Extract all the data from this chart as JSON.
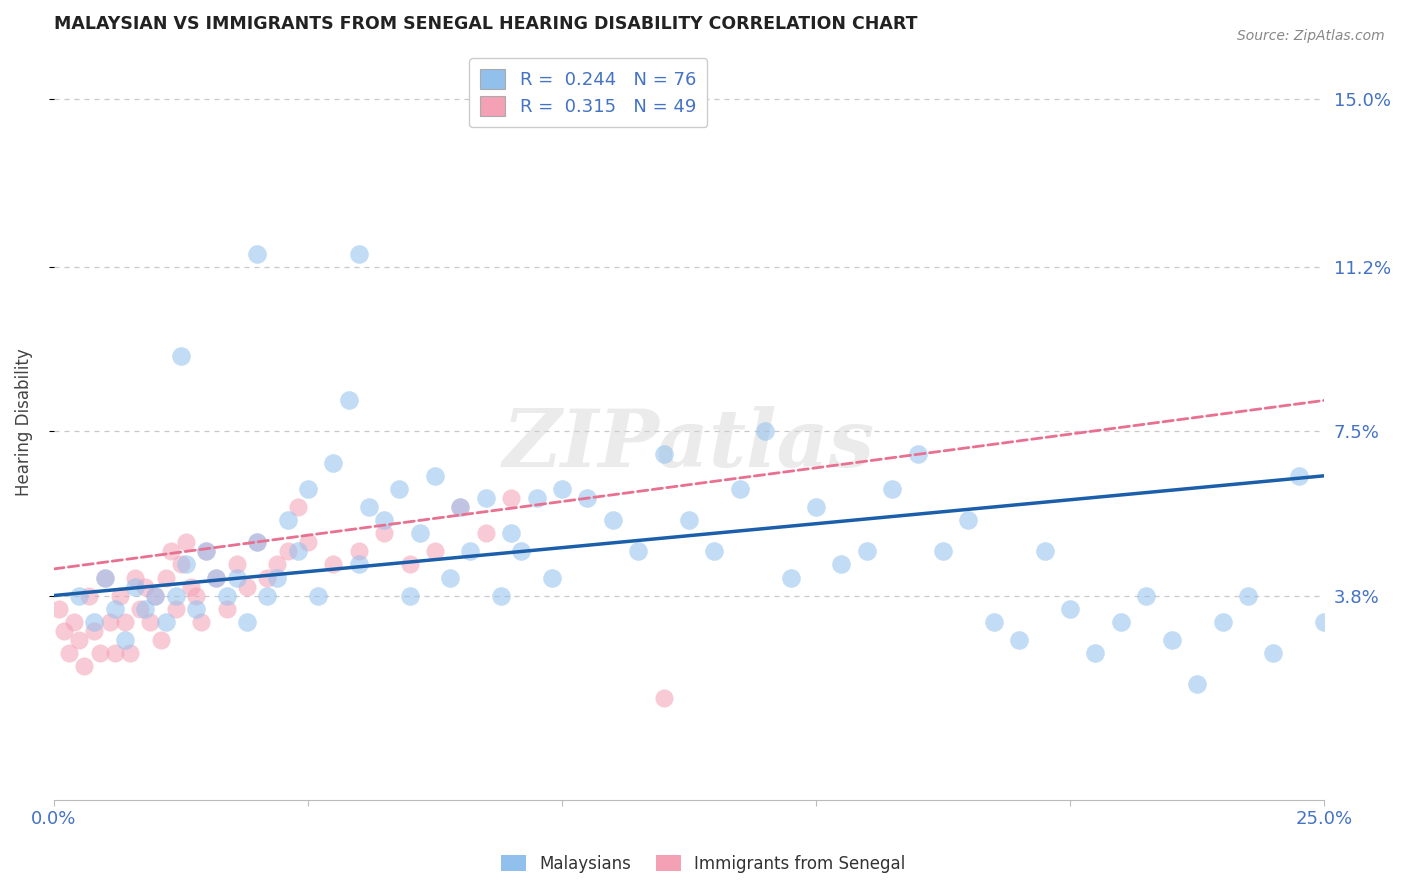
{
  "title": "MALAYSIAN VS IMMIGRANTS FROM SENEGAL HEARING DISABILITY CORRELATION CHART",
  "source": "Source: ZipAtlas.com",
  "ylabel": "Hearing Disability",
  "ytick_labels": [
    "3.8%",
    "7.5%",
    "11.2%",
    "15.0%"
  ],
  "ytick_values": [
    0.038,
    0.075,
    0.112,
    0.15
  ],
  "xlim": [
    0.0,
    0.25
  ],
  "ylim": [
    -0.008,
    0.162
  ],
  "watermark": "ZIPatlas",
  "blue_color": "#92C0ED",
  "pink_color": "#F4A0B5",
  "blue_line_color": "#1B5FAA",
  "pink_line_color": "#E87090",
  "title_color": "#222222",
  "axis_label_color": "#4472C4",
  "grid_color": "#C8C8C8",
  "blue_line_x0": 0.0,
  "blue_line_y0": 0.038,
  "blue_line_x1": 0.25,
  "blue_line_y1": 0.065,
  "pink_line_x0": 0.0,
  "pink_line_y0": 0.044,
  "pink_line_x1": 0.25,
  "pink_line_y1": 0.082,
  "blue_scatter_x": [
    0.005,
    0.008,
    0.01,
    0.012,
    0.014,
    0.016,
    0.018,
    0.02,
    0.022,
    0.024,
    0.026,
    0.028,
    0.03,
    0.032,
    0.034,
    0.036,
    0.038,
    0.04,
    0.042,
    0.044,
    0.046,
    0.048,
    0.05,
    0.052,
    0.055,
    0.058,
    0.06,
    0.062,
    0.065,
    0.068,
    0.07,
    0.072,
    0.075,
    0.078,
    0.08,
    0.082,
    0.085,
    0.088,
    0.09,
    0.092,
    0.095,
    0.098,
    0.1,
    0.105,
    0.11,
    0.115,
    0.12,
    0.125,
    0.13,
    0.135,
    0.14,
    0.145,
    0.15,
    0.155,
    0.16,
    0.165,
    0.17,
    0.175,
    0.18,
    0.185,
    0.19,
    0.195,
    0.2,
    0.205,
    0.21,
    0.215,
    0.22,
    0.225,
    0.23,
    0.235,
    0.24,
    0.245,
    0.25,
    0.025,
    0.04,
    0.06
  ],
  "blue_scatter_y": [
    0.038,
    0.032,
    0.042,
    0.035,
    0.028,
    0.04,
    0.035,
    0.038,
    0.032,
    0.038,
    0.045,
    0.035,
    0.048,
    0.042,
    0.038,
    0.042,
    0.032,
    0.05,
    0.038,
    0.042,
    0.055,
    0.048,
    0.062,
    0.038,
    0.068,
    0.082,
    0.045,
    0.058,
    0.055,
    0.062,
    0.038,
    0.052,
    0.065,
    0.042,
    0.058,
    0.048,
    0.06,
    0.038,
    0.052,
    0.048,
    0.06,
    0.042,
    0.062,
    0.06,
    0.055,
    0.048,
    0.07,
    0.055,
    0.048,
    0.062,
    0.075,
    0.042,
    0.058,
    0.045,
    0.048,
    0.062,
    0.07,
    0.048,
    0.055,
    0.032,
    0.028,
    0.048,
    0.035,
    0.025,
    0.032,
    0.038,
    0.028,
    0.018,
    0.032,
    0.038,
    0.025,
    0.065,
    0.032,
    0.092,
    0.115,
    0.115
  ],
  "pink_scatter_x": [
    0.001,
    0.002,
    0.003,
    0.004,
    0.005,
    0.006,
    0.007,
    0.008,
    0.009,
    0.01,
    0.011,
    0.012,
    0.013,
    0.014,
    0.015,
    0.016,
    0.017,
    0.018,
    0.019,
    0.02,
    0.021,
    0.022,
    0.023,
    0.024,
    0.025,
    0.026,
    0.027,
    0.028,
    0.029,
    0.03,
    0.032,
    0.034,
    0.036,
    0.038,
    0.04,
    0.042,
    0.044,
    0.046,
    0.048,
    0.05,
    0.055,
    0.06,
    0.065,
    0.07,
    0.075,
    0.08,
    0.085,
    0.09,
    0.12
  ],
  "pink_scatter_y": [
    0.035,
    0.03,
    0.025,
    0.032,
    0.028,
    0.022,
    0.038,
    0.03,
    0.025,
    0.042,
    0.032,
    0.025,
    0.038,
    0.032,
    0.025,
    0.042,
    0.035,
    0.04,
    0.032,
    0.038,
    0.028,
    0.042,
    0.048,
    0.035,
    0.045,
    0.05,
    0.04,
    0.038,
    0.032,
    0.048,
    0.042,
    0.035,
    0.045,
    0.04,
    0.05,
    0.042,
    0.045,
    0.048,
    0.058,
    0.05,
    0.045,
    0.048,
    0.052,
    0.045,
    0.048,
    0.058,
    0.052,
    0.06,
    0.015
  ]
}
